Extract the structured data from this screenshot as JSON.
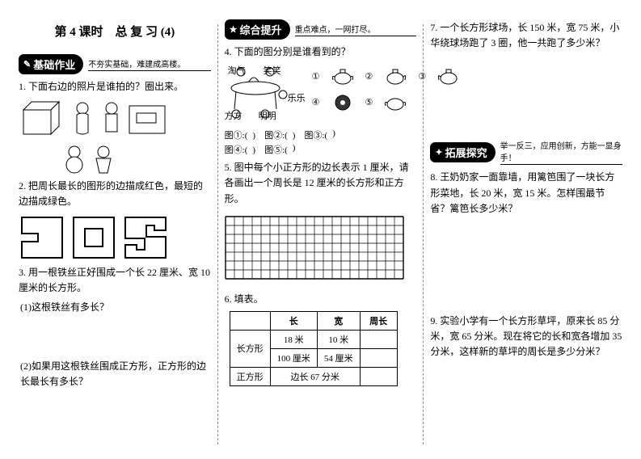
{
  "title": "第 4 课时　总 复 习 (4)",
  "sections": {
    "basic": {
      "badge": "基础作业",
      "sub": "不夯实基础，难建成高楼。",
      "icon": "✎"
    },
    "comp": {
      "badge": "综合提升",
      "sub": "重点难点，一网打尽。",
      "icon": "★"
    },
    "ext": {
      "badge": "拓展探究",
      "sub": "举一反三，应用创新，方能一显身手！",
      "icon": "✦"
    }
  },
  "col1": {
    "q1": "1. 下面右边的照片是谁拍的？圈出来。",
    "q2": "2. 把周长最长的图形的边描成红色，最短的边描成绿色。",
    "q3": "3. 用一根铁丝正好围成一个长 22 厘米、宽 10 厘米的长方形。",
    "q3a": "(1)这根铁丝有多长？",
    "q3b": "(2)如果用这根铁丝围成正方形，正方形的边长最长有多长？"
  },
  "col2": {
    "q4": "4. 下面的图分别是谁看到的？",
    "scene_labels": {
      "taoqi": "淘气",
      "xiaoxiao": "笑笑",
      "lele": "乐乐",
      "fangfang": "方方",
      "mingming": "明明"
    },
    "circled": [
      "①",
      "②",
      "③",
      "④",
      "⑤"
    ],
    "blanks": {
      "l1a": "图①:(",
      "l1b": ")　图②:(",
      "l1c": ")　图③:(",
      "l1d": ")",
      "l2a": "图④:(",
      "l2b": ")　图⑤:(",
      "l2c": ")"
    },
    "q5": "5. 图中每个小正方形的边长表示 1 厘米，请各画出一个周长是 12 厘米的长方形和正方形。",
    "q6": "6. 填表。",
    "table": {
      "headers": [
        "",
        "长",
        "宽",
        "周长"
      ],
      "r1": [
        "长方形",
        "18 米",
        "10 米",
        ""
      ],
      "r2": [
        "",
        "100 厘米",
        "54 厘米",
        ""
      ],
      "r3_label": "正方形",
      "r3_span": "边长 67 分米",
      "r3_last": ""
    }
  },
  "col3": {
    "q7": "7. 一个长方形球场，长 150 米，宽 75 米，小华绕球场跑了 3 圈，他一共跑了多少米？",
    "q8": "8. 王奶奶家一面靠墙，用篱笆围了一块长方形菜地，长 20 米，宽 15 米。怎样围最节省？篱笆长多少米？",
    "q9": "9. 实验小学有一个长方形草坪，原来长 85 分米，宽 65 分米。现在将它的长和宽各增加 35 分米，这样新的草坪的周长是多少分米？"
  },
  "grid": {
    "cols": 20,
    "rows": 7,
    "cell": 11
  },
  "colors": {
    "stroke": "#000000"
  }
}
